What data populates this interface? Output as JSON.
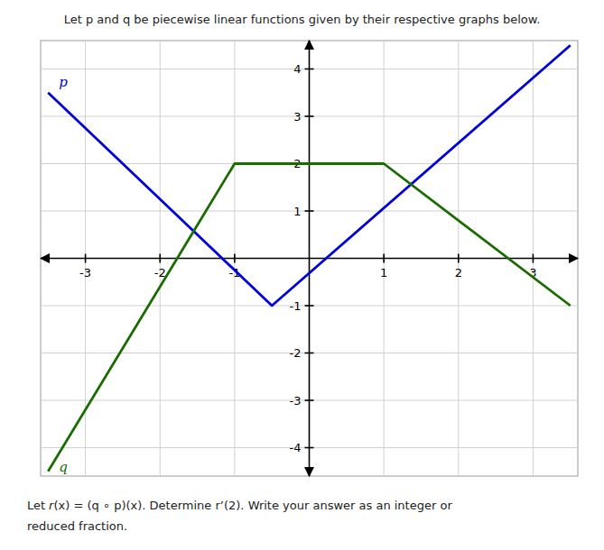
{
  "chart_data": {
    "type": "line",
    "title": "Let p and q be piecewise linear functions given by their respective graphs below.",
    "annotations": [
      "Let",
      "r",
      "(x) = (q ∘ p)(x).  Determine r’(2).  Write your answer as an integer or",
      "reduced fraction."
    ],
    "series": [
      {
        "name": "p",
        "color": "#0000dd",
        "x": [
          -3.5,
          -0.5,
          3.5
        ],
        "values": [
          3.5,
          -1.0,
          4.5
        ]
      },
      {
        "name": "q",
        "color": "#1a6b00",
        "x": [
          -3.5,
          -1.0,
          1.0,
          3.5
        ],
        "values": [
          -4.5,
          2.0,
          2.0,
          -1.0
        ]
      }
    ],
    "xlim": [
      -3.6,
      3.6
    ],
    "ylim": [
      -4.6,
      4.6
    ],
    "xticks": [
      -3,
      -2,
      -1,
      1,
      2,
      3
    ],
    "yticks": [
      -4,
      -3,
      -2,
      -1,
      1,
      2,
      3,
      4
    ],
    "grid": true
  }
}
